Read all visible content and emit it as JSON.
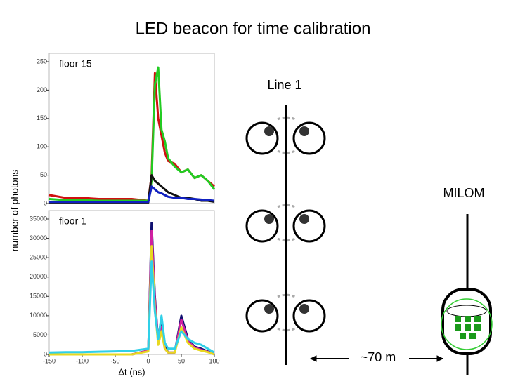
{
  "slide": {
    "title": "LED beacon for time calibration",
    "line_label": "Line 1",
    "milom_label": "MILOM",
    "distance_label": "~70 m"
  },
  "chart_data": [
    {
      "type": "line",
      "title": "floor 15",
      "ylabel": "number of photons",
      "x": [
        -150,
        -125,
        -100,
        -75,
        -50,
        -25,
        0,
        5,
        10,
        15,
        20,
        25,
        30,
        40,
        50,
        60,
        70,
        80,
        90,
        100
      ],
      "series": [
        {
          "color": "#d01010",
          "values": [
            15,
            10,
            10,
            8,
            8,
            8,
            5,
            50,
            230,
            150,
            120,
            90,
            75,
            70,
            55,
            60,
            45,
            50,
            40,
            30
          ]
        },
        {
          "color": "#22cc22",
          "values": [
            8,
            6,
            6,
            5,
            5,
            5,
            5,
            40,
            210,
            240,
            130,
            110,
            80,
            65,
            55,
            60,
            45,
            50,
            40,
            25
          ]
        },
        {
          "color": "#111111",
          "values": [
            2,
            2,
            2,
            2,
            2,
            2,
            2,
            50,
            40,
            35,
            30,
            25,
            20,
            15,
            10,
            10,
            8,
            5,
            5,
            3
          ]
        },
        {
          "color": "#1020c0",
          "values": [
            3,
            3,
            3,
            3,
            3,
            3,
            3,
            30,
            25,
            20,
            18,
            15,
            12,
            10,
            10,
            8,
            8,
            7,
            6,
            5
          ]
        }
      ],
      "xlim": [
        -150,
        100
      ],
      "ylim": [
        0,
        250
      ],
      "yticks": [
        0,
        50,
        100,
        150,
        200,
        250
      ]
    },
    {
      "type": "line",
      "title": "floor 1",
      "xlabel": "Δt (ns)",
      "x": [
        -150,
        -125,
        -100,
        -75,
        -50,
        -25,
        0,
        5,
        10,
        15,
        20,
        25,
        30,
        40,
        50,
        60,
        70,
        80,
        90,
        100
      ],
      "series": [
        {
          "color": "#101070",
          "values": [
            0,
            0,
            0,
            0,
            0,
            0,
            1000,
            34000,
            15000,
            3000,
            8000,
            2000,
            500,
            500,
            10000,
            4000,
            2000,
            1500,
            800,
            0
          ]
        },
        {
          "color": "#d020a0",
          "values": [
            0,
            0,
            0,
            0,
            0,
            0,
            1000,
            32000,
            14000,
            3000,
            7000,
            1500,
            500,
            500,
            9000,
            3500,
            1800,
            1200,
            700,
            0
          ]
        },
        {
          "color": "#e8d820",
          "values": [
            0,
            0,
            0,
            0,
            0,
            0,
            800,
            28000,
            12000,
            2500,
            6000,
            1500,
            500,
            500,
            7000,
            3000,
            1500,
            1000,
            600,
            0
          ]
        },
        {
          "color": "#30d0e8",
          "values": [
            500,
            600,
            600,
            700,
            800,
            900,
            1500,
            24000,
            11000,
            4000,
            10000,
            3000,
            1500,
            1500,
            6000,
            4000,
            3000,
            2500,
            1500,
            500
          ]
        }
      ],
      "xlim": [
        -150,
        100
      ],
      "ylim": [
        0,
        35000
      ],
      "xticks": [
        -150,
        -100,
        -50,
        0,
        50,
        100
      ],
      "yticks": [
        0,
        5000,
        10000,
        15000,
        20000,
        25000,
        30000,
        35000
      ]
    }
  ]
}
